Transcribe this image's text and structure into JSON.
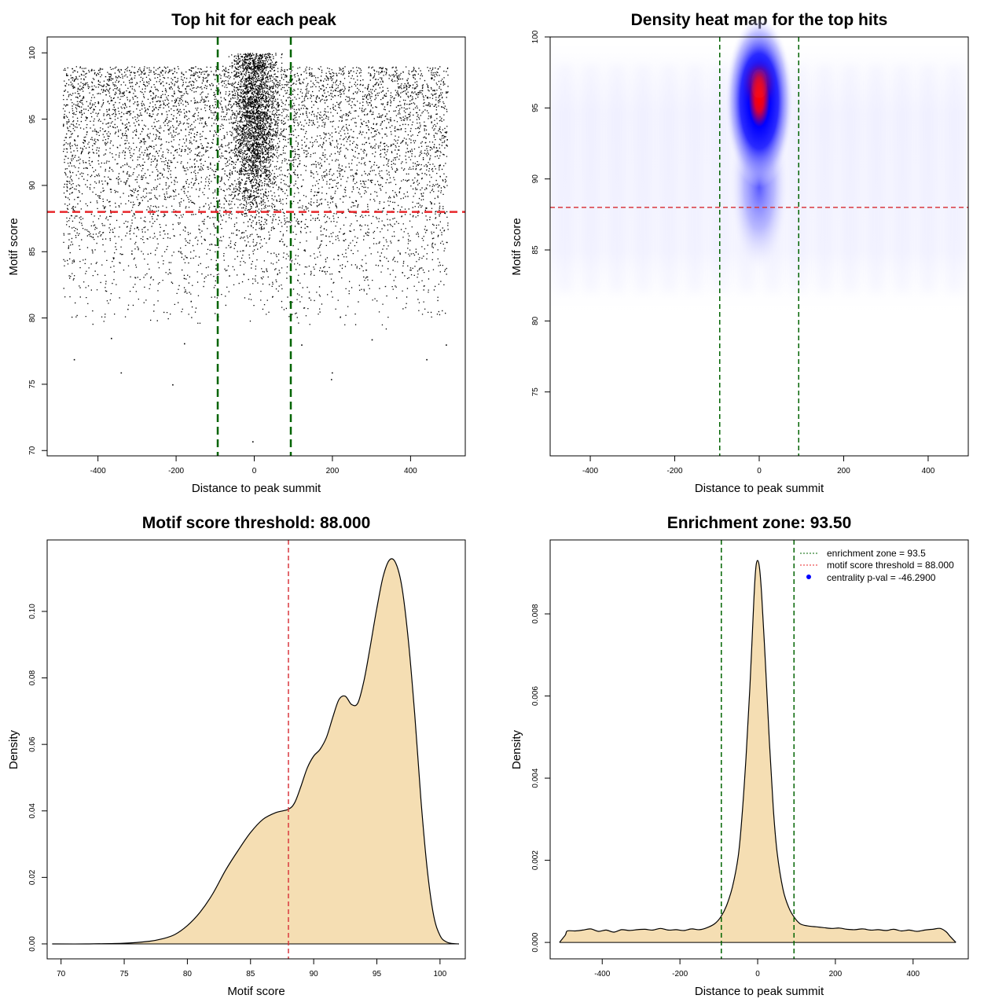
{
  "chart_data": [
    {
      "id": "scatter",
      "type": "scatter",
      "title": "Top hit for each peak",
      "xlabel": "Distance to peak summit",
      "ylabel": "Motif score",
      "xlim": [
        -530,
        540
      ],
      "ylim": [
        69.6,
        101.2
      ],
      "xticks": [
        -400,
        -200,
        0,
        200,
        400
      ],
      "yticks": [
        70,
        75,
        80,
        85,
        90,
        95,
        100
      ],
      "hlines": [
        {
          "y": 88,
          "color": "#e8262a",
          "style": "dashed"
        }
      ],
      "vlines": [
        {
          "x": -93.5,
          "color": "#006400",
          "style": "dashed"
        },
        {
          "x": 93.5,
          "color": "#006400",
          "style": "dashed"
        }
      ],
      "point_color": "#000000",
      "grid": false,
      "background_points": {
        "x_range": [
          -490,
          495
        ],
        "score_range": [
          79,
          99
        ],
        "approx_count": 6500
      },
      "central_cluster": {
        "x_center": 0,
        "x_spread": 28,
        "score_center": 95,
        "score_spread": 3.6,
        "score_max": 100,
        "approx_count": 16000
      },
      "outlier_points": [
        {
          "x": -462,
          "y": 76.9
        },
        {
          "x": -342,
          "y": 75.9
        },
        {
          "x": -210,
          "y": 75.0
        },
        {
          "x": 196,
          "y": 75.4
        },
        {
          "x": 198,
          "y": 75.9
        },
        {
          "x": 440,
          "y": 76.9
        },
        {
          "x": -5,
          "y": 70.7
        },
        {
          "x": 490,
          "y": 78.0
        },
        {
          "x": -367,
          "y": 78.5
        },
        {
          "x": -180,
          "y": 78.1
        },
        {
          "x": 300,
          "y": 78.4
        },
        {
          "x": 120,
          "y": 78.0
        }
      ]
    },
    {
      "id": "heatmap",
      "type": "heatmap",
      "title": "Density heat map for the top hits",
      "xlabel": "Distance to peak summit",
      "ylabel": "Motif score",
      "xlim": [
        -495,
        495
      ],
      "ylim": [
        70.5,
        100
      ],
      "xticks": [
        -400,
        -200,
        0,
        200,
        400
      ],
      "yticks": [
        75,
        80,
        85,
        90,
        95,
        100
      ],
      "hlines": [
        {
          "y": 88,
          "color": "#d9383e",
          "style": "dashed"
        }
      ],
      "vlines": [
        {
          "x": -93.5,
          "color": "#006400",
          "style": "dashed"
        },
        {
          "x": 93.5,
          "color": "#006400",
          "style": "dashed"
        }
      ],
      "peak": {
        "x": 0,
        "y": 96.7
      },
      "colors": [
        "#ffffff",
        "#0000ff",
        "#ff0000"
      ],
      "grid": false
    },
    {
      "id": "score-density",
      "type": "area",
      "title": "Motif score threshold: 88.000",
      "xlabel": "Motif score",
      "ylabel": "Density",
      "xlim": [
        68.9,
        102
      ],
      "ylim": [
        -0.0045,
        0.1215
      ],
      "xticks": [
        70,
        75,
        80,
        85,
        90,
        95,
        100
      ],
      "yticks": [
        0.0,
        0.02,
        0.04,
        0.06,
        0.08,
        0.1
      ],
      "ytick_labels": [
        "0.00",
        "0.02",
        "0.04",
        "0.06",
        "0.08",
        "0.10"
      ],
      "fill": "#f5deb3",
      "vlines": [
        {
          "x": 88,
          "color": "#d9383e",
          "style": "dashed"
        }
      ],
      "grid": false,
      "x": [
        69.3,
        72,
        75,
        77,
        78,
        79,
        80,
        81,
        82,
        83,
        84,
        85,
        86,
        87,
        88,
        88.5,
        89,
        89.5,
        90,
        90.5,
        91,
        91.5,
        92,
        92.5,
        93,
        93.5,
        94,
        94.5,
        95,
        95.5,
        96,
        96.5,
        97,
        97.5,
        98,
        98.5,
        99,
        99.5,
        100,
        100.5,
        101,
        101.5
      ],
      "y": [
        0.0,
        0.0,
        0.0002,
        0.0008,
        0.0015,
        0.0028,
        0.0055,
        0.0095,
        0.015,
        0.022,
        0.028,
        0.0335,
        0.0375,
        0.0395,
        0.0405,
        0.0425,
        0.0475,
        0.053,
        0.0565,
        0.0585,
        0.062,
        0.068,
        0.0735,
        0.0745,
        0.072,
        0.0725,
        0.0795,
        0.09,
        0.101,
        0.1105,
        0.1155,
        0.1145,
        0.107,
        0.091,
        0.069,
        0.043,
        0.022,
        0.0085,
        0.0025,
        0.0006,
        0.0001,
        0.0
      ]
    },
    {
      "id": "distance-density",
      "type": "area",
      "title": "Enrichment zone: 93.50",
      "xlabel": "Distance to peak summit",
      "ylabel": "Density",
      "xlim": [
        -534,
        542
      ],
      "ylim": [
        -0.0004,
        0.0098
      ],
      "xticks": [
        -400,
        -200,
        0,
        200,
        400
      ],
      "yticks": [
        0.0,
        0.002,
        0.004,
        0.006,
        0.008
      ],
      "ytick_labels": [
        "0.000",
        "0.002",
        "0.004",
        "0.006",
        "0.008"
      ],
      "fill": "#f5deb3",
      "vlines": [
        {
          "x": -93.5,
          "color": "#006400",
          "style": "dashed"
        },
        {
          "x": 93.5,
          "color": "#006400",
          "style": "dashed"
        }
      ],
      "grid": false,
      "x": [
        -510,
        -495,
        -490,
        -470,
        -450,
        -430,
        -410,
        -390,
        -370,
        -350,
        -330,
        -310,
        -290,
        -270,
        -250,
        -230,
        -210,
        -190,
        -170,
        -150,
        -130,
        -110,
        -95,
        -80,
        -65,
        -50,
        -40,
        -30,
        -20,
        -10,
        -5,
        0,
        5,
        10,
        20,
        30,
        40,
        50,
        65,
        80,
        95,
        110,
        130,
        150,
        170,
        190,
        210,
        230,
        250,
        270,
        290,
        310,
        330,
        350,
        370,
        390,
        410,
        430,
        450,
        470,
        485,
        495,
        510
      ],
      "y": [
        0.0,
        0.00018,
        0.00028,
        0.00028,
        0.0003,
        0.00033,
        0.00027,
        0.0003,
        0.00025,
        0.00031,
        0.00029,
        0.00031,
        0.00032,
        0.0003,
        0.00034,
        0.0003,
        0.00031,
        0.00029,
        0.00033,
        0.00031,
        0.00036,
        0.00046,
        0.00062,
        0.0009,
        0.00135,
        0.0021,
        0.0031,
        0.0045,
        0.0062,
        0.0083,
        0.0091,
        0.0093,
        0.0091,
        0.0085,
        0.0068,
        0.0049,
        0.0033,
        0.0022,
        0.0013,
        0.00085,
        0.0006,
        0.00045,
        0.0004,
        0.00038,
        0.00036,
        0.00034,
        0.00035,
        0.00032,
        0.00031,
        0.00033,
        0.0003,
        0.00031,
        0.00029,
        0.00032,
        0.00028,
        0.0003,
        0.00027,
        0.0003,
        0.00032,
        0.00034,
        0.00026,
        0.00015,
        0.0
      ],
      "legend": {
        "position": "top-right",
        "entries": [
          {
            "label": "enrichment zone = 93.5",
            "color": "#006400",
            "symbol": "dotted-line"
          },
          {
            "label": "motif score threshold = 88.000",
            "color": "#e8262a",
            "symbol": "dotted-line"
          },
          {
            "label": "centrality p-val = -46.2900",
            "color": "#0000ff",
            "symbol": "point"
          }
        ]
      }
    }
  ]
}
